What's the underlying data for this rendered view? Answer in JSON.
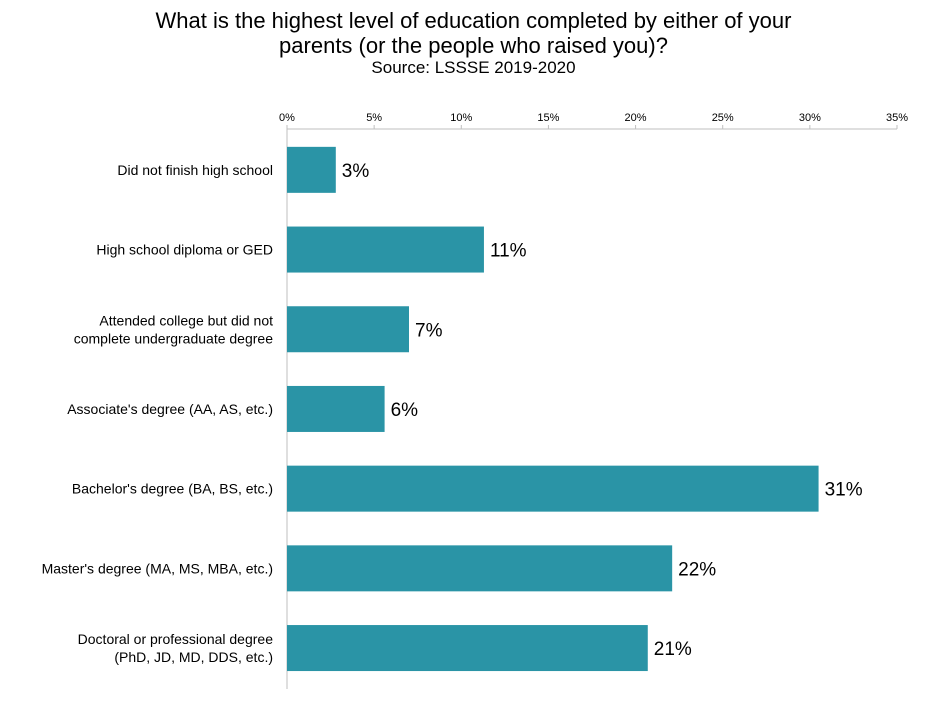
{
  "chart_data": {
    "type": "bar",
    "orientation": "horizontal",
    "title": "What is the highest level of education completed by either of your parents (or the people who raised you)?",
    "subtitle": "Source: LSSSE 2019-2020",
    "categories": [
      [
        "Did not finish high school"
      ],
      [
        "High school diploma or GED"
      ],
      [
        "Attended college but did not",
        "complete undergraduate degree"
      ],
      [
        "Associate's degree (AA, AS, etc.)"
      ],
      [
        "Bachelor's degree (BA, BS, etc.)"
      ],
      [
        "Master's degree (MA, MS, MBA, etc.)"
      ],
      [
        "Doctoral or professional degree",
        "(PhD, JD, MD, DDS, etc.)"
      ]
    ],
    "values": [
      2.8,
      11.3,
      7.0,
      5.6,
      30.5,
      22.1,
      20.7
    ],
    "data_labels": [
      "3%",
      "11%",
      "7%",
      "6%",
      "31%",
      "22%",
      "21%"
    ],
    "xlim": [
      0,
      35
    ],
    "x_ticks": [
      0,
      5,
      10,
      15,
      20,
      25,
      30,
      35
    ],
    "x_tick_labels": [
      "0%",
      "5%",
      "10%",
      "15%",
      "20%",
      "25%",
      "30%",
      "35%"
    ],
    "x_axis_position": "top",
    "grid": false,
    "legend": "none",
    "bar_color": "#2A94A6",
    "axis_color": "#BFBFBF"
  }
}
